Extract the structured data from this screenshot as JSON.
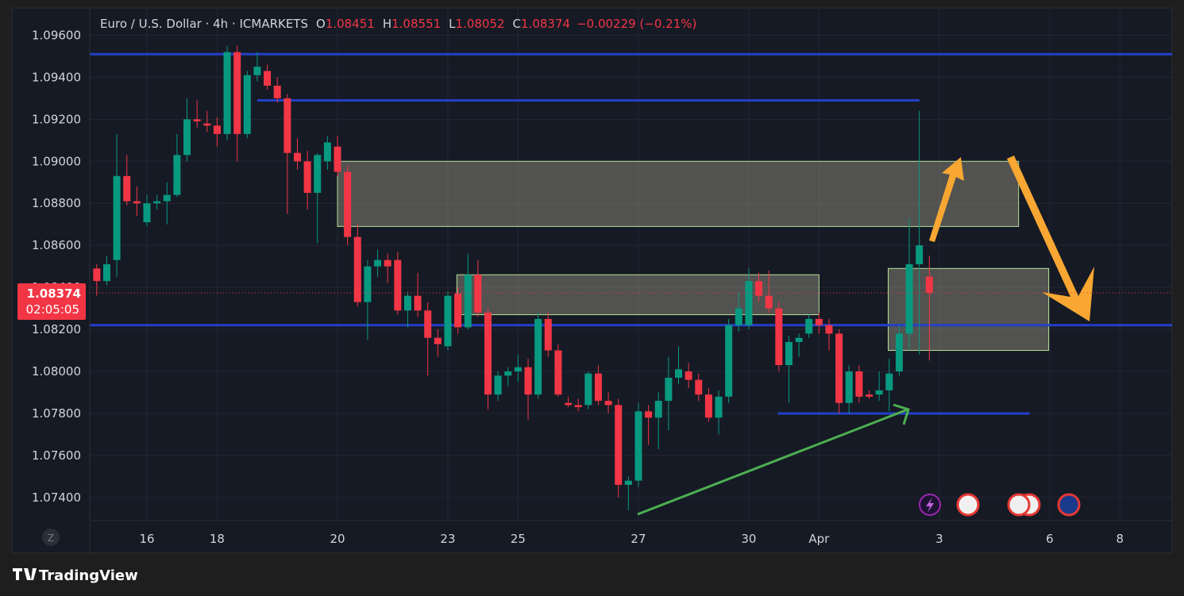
{
  "chart_data": {
    "type": "candlestick",
    "title": "Euro / U.S. Dollar · 4h · ICMARKETS",
    "header_labels": [
      "O",
      "H",
      "L",
      "C"
    ],
    "header_values": [
      "1.08451",
      "1.08551",
      "1.08052",
      "1.08374"
    ],
    "change": "−0.00229 (−0.21%)",
    "last_price": {
      "value": 1.08374,
      "label": "1.08374"
    },
    "countdown": "02:05:05",
    "up_color": "#089981",
    "down_color": "#f23645",
    "ylim": [
      1.0729,
      1.0973
    ],
    "yticks": [
      {
        "value": 1.074,
        "label": "1.07400"
      },
      {
        "value": 1.076,
        "label": "1.07600"
      },
      {
        "value": 1.078,
        "label": "1.07800"
      },
      {
        "value": 1.08,
        "label": "1.08000"
      },
      {
        "value": 1.082,
        "label": "1.08200"
      },
      {
        "value": 1.084,
        "label": "1.08400"
      },
      {
        "value": 1.086,
        "label": "1.08600"
      },
      {
        "value": 1.088,
        "label": "1.08800"
      },
      {
        "value": 1.09,
        "label": "1.09000"
      },
      {
        "value": 1.092,
        "label": "1.09200"
      },
      {
        "value": 1.094,
        "label": "1.09400"
      },
      {
        "value": 1.096,
        "label": "1.09600"
      }
    ],
    "xlim": [
      -0.7,
      107.2
    ],
    "xticks": [
      {
        "value": 5,
        "label": "16"
      },
      {
        "value": 12,
        "label": "18"
      },
      {
        "value": 24,
        "label": "20"
      },
      {
        "value": 35,
        "label": "23"
      },
      {
        "value": 42,
        "label": "25"
      },
      {
        "value": 54,
        "label": "27"
      },
      {
        "value": 65,
        "label": "30"
      },
      {
        "value": 72,
        "label": "Apr"
      },
      {
        "value": 84,
        "label": "3"
      },
      {
        "value": 95,
        "label": "6"
      },
      {
        "value": 102,
        "label": "8"
      }
    ],
    "grid": true,
    "ohlc": [
      [
        1.0849,
        1.0851,
        1.0836,
        1.0843
      ],
      [
        1.0843,
        1.0855,
        1.0841,
        1.0851
      ],
      [
        1.0853,
        1.0913,
        1.0845,
        1.0893
      ],
      [
        1.0893,
        1.0903,
        1.0879,
        1.0881
      ],
      [
        1.0881,
        1.0888,
        1.0874,
        1.088
      ],
      [
        1.0871,
        1.0884,
        1.0869,
        1.088
      ],
      [
        1.088,
        1.0884,
        1.0877,
        1.0881
      ],
      [
        1.0881,
        1.089,
        1.087,
        1.0884
      ],
      [
        1.0884,
        1.0913,
        1.0883,
        1.0903
      ],
      [
        1.0903,
        1.093,
        1.09,
        1.092
      ],
      [
        1.092,
        1.0929,
        1.0916,
        1.0919
      ],
      [
        1.0918,
        1.0924,
        1.0914,
        1.0917
      ],
      [
        1.0917,
        1.0921,
        1.0907,
        1.0913
      ],
      [
        1.0913,
        1.0955,
        1.091,
        1.0952
      ],
      [
        1.0952,
        1.0955,
        1.09,
        1.0913
      ],
      [
        1.0913,
        1.0943,
        1.0911,
        1.0941
      ],
      [
        1.0941,
        1.0952,
        1.0938,
        1.0945
      ],
      [
        1.0943,
        1.0946,
        1.0934,
        1.0936
      ],
      [
        1.0936,
        1.094,
        1.0928,
        1.093
      ],
      [
        1.093,
        1.0932,
        1.0875,
        1.0904
      ],
      [
        1.0904,
        1.0911,
        1.0896,
        1.09
      ],
      [
        1.09,
        1.0905,
        1.0877,
        1.0885
      ],
      [
        1.0885,
        1.0904,
        1.0861,
        1.0903
      ],
      [
        1.09,
        1.0912,
        1.0896,
        1.0909
      ],
      [
        1.0907,
        1.0912,
        1.0893,
        1.0895
      ],
      [
        1.0895,
        1.0898,
        1.086,
        1.0864
      ],
      [
        1.0864,
        1.087,
        1.0831,
        1.0833
      ],
      [
        1.0833,
        1.0853,
        1.0815,
        1.085
      ],
      [
        1.085,
        1.0858,
        1.0845,
        1.0853
      ],
      [
        1.0853,
        1.0856,
        1.0842,
        1.085
      ],
      [
        1.0853,
        1.0857,
        1.0827,
        1.0829
      ],
      [
        1.0829,
        1.0838,
        1.0821,
        1.0836
      ],
      [
        1.0836,
        1.0847,
        1.0826,
        1.0829
      ],
      [
        1.0829,
        1.0833,
        1.0798,
        1.0816
      ],
      [
        1.0816,
        1.082,
        1.0807,
        1.0813
      ],
      [
        1.0812,
        1.0838,
        1.081,
        1.0836
      ],
      [
        1.0837,
        1.084,
        1.0818,
        1.0821
      ],
      [
        1.0821,
        1.0856,
        1.082,
        1.0846
      ],
      [
        1.0846,
        1.0853,
        1.0826,
        1.0828
      ],
      [
        1.0828,
        1.083,
        1.0782,
        1.0789
      ],
      [
        1.0789,
        1.08,
        1.0786,
        1.0798
      ],
      [
        1.0798,
        1.0802,
        1.0793,
        1.08
      ],
      [
        1.08,
        1.0808,
        1.0795,
        1.0802
      ],
      [
        1.0802,
        1.0806,
        1.0777,
        1.0789
      ],
      [
        1.0789,
        1.0828,
        1.0787,
        1.0825
      ],
      [
        1.0825,
        1.0828,
        1.0807,
        1.081
      ],
      [
        1.081,
        1.0813,
        1.0788,
        1.0789
      ],
      [
        1.0785,
        1.0788,
        1.0783,
        1.0784
      ],
      [
        1.0784,
        1.0787,
        1.0781,
        1.0783
      ],
      [
        1.0784,
        1.08,
        1.0782,
        1.0799
      ],
      [
        1.0799,
        1.0803,
        1.0784,
        1.0786
      ],
      [
        1.0786,
        1.079,
        1.078,
        1.0784
      ],
      [
        1.0784,
        1.0787,
        1.074,
        1.0746
      ],
      [
        1.0746,
        1.075,
        1.0734,
        1.0748
      ],
      [
        1.0748,
        1.0785,
        1.0745,
        1.0781
      ],
      [
        1.0781,
        1.0784,
        1.0765,
        1.0778
      ],
      [
        1.0778,
        1.079,
        1.0763,
        1.0786
      ],
      [
        1.0786,
        1.0807,
        1.0772,
        1.0797
      ],
      [
        1.0797,
        1.0812,
        1.0794,
        1.0801
      ],
      [
        1.08,
        1.0804,
        1.0792,
        1.0796
      ],
      [
        1.0796,
        1.0799,
        1.0786,
        1.0789
      ],
      [
        1.0789,
        1.0792,
        1.0776,
        1.0778
      ],
      [
        1.0778,
        1.0791,
        1.077,
        1.0788
      ],
      [
        1.0788,
        1.0825,
        1.0785,
        1.0822
      ],
      [
        1.0822,
        1.0838,
        1.0819,
        1.083
      ],
      [
        1.0822,
        1.0849,
        1.082,
        1.0843
      ],
      [
        1.0843,
        1.0847,
        1.0833,
        1.0836
      ],
      [
        1.0836,
        1.0848,
        1.0828,
        1.083
      ],
      [
        1.083,
        1.0833,
        1.08,
        1.0803
      ],
      [
        1.0803,
        1.0817,
        1.0785,
        1.0814
      ],
      [
        1.0814,
        1.0818,
        1.0807,
        1.0816
      ],
      [
        1.0818,
        1.0827,
        1.0816,
        1.0825
      ],
      [
        1.0825,
        1.0828,
        1.0818,
        1.0822
      ],
      [
        1.0822,
        1.0825,
        1.081,
        1.0818
      ],
      [
        1.0818,
        1.082,
        1.078,
        1.0785
      ],
      [
        1.0785,
        1.0803,
        1.078,
        1.08
      ],
      [
        1.08,
        1.0803,
        1.0785,
        1.0788
      ],
      [
        1.0789,
        1.0791,
        1.0787,
        1.0788
      ],
      [
        1.0789,
        1.08,
        1.0786,
        1.0791
      ],
      [
        1.0791,
        1.0806,
        1.0781,
        1.0799
      ],
      [
        1.08,
        1.0822,
        1.0798,
        1.0818
      ],
      [
        1.0818,
        1.0873,
        1.081,
        1.0851
      ],
      [
        1.0851,
        1.0924,
        1.0808,
        1.086
      ],
      [
        1.08451,
        1.08551,
        1.08052,
        1.08374
      ]
    ],
    "levels": [
      {
        "value": 1.0951
      },
      {
        "value": 1.0929,
        "x_start": 16,
        "x_end": 82
      },
      {
        "value": 1.0822
      },
      {
        "value": 1.078,
        "x_start": 67.9,
        "x_end": 93
      }
    ],
    "level_color": "#2340c8",
    "zones": [
      {
        "top": 1.09,
        "bottom": 1.0869,
        "x_start": 24,
        "x_end": 91.9
      },
      {
        "top": 1.0846,
        "bottom": 1.0827,
        "x_start": 35.9,
        "x_end": 72
      },
      {
        "top": 1.0849,
        "bottom": 1.081,
        "x_start": 78.9,
        "x_end": 94.9
      }
    ],
    "z_button": "Z",
    "brand": "TradingView"
  }
}
